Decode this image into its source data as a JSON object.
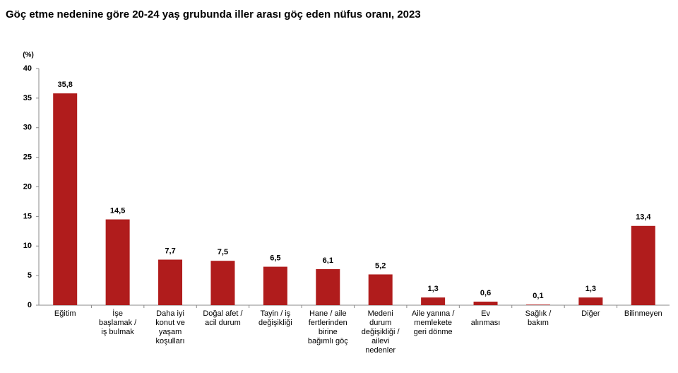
{
  "chart_data": {
    "type": "bar",
    "title": "Göç etme nedenine göre 20-24 yaş grubunda iller arası göç eden nüfus oranı, 2023",
    "y_label": "(%)",
    "categories": [
      "Eğitim",
      "İşe\nbaşlamak /\niş bulmak",
      "Daha iyi\nkonut ve\nyaşam\nkoşulları",
      "Doğal afet /\nacil durum",
      "Tayin / iş\ndeğişikliği",
      "Hane / aile\nfertlerinden\nbirine\nbağımlı göç",
      "Medeni\ndurum\ndeğişikliği /\nailevi\nnedenler",
      "Aile yanına /\nmemlekete\ngeri dönme",
      "Ev\nalınması",
      "Sağlık /\nbakım",
      "Diğer",
      "Bilinmeyen"
    ],
    "values": [
      35.8,
      14.5,
      7.7,
      7.5,
      6.5,
      6.1,
      5.2,
      1.3,
      0.6,
      0.1,
      1.3,
      13.4
    ],
    "value_labels": [
      "35,8",
      "14,5",
      "7,7",
      "7,5",
      "6,5",
      "6,1",
      "5,2",
      "1,3",
      "0,6",
      "0,1",
      "1,3",
      "13,4"
    ],
    "color": "#b01c1c",
    "ylim": [
      0,
      40
    ],
    "yticks": [
      0,
      5,
      10,
      15,
      20,
      25,
      30,
      35,
      40
    ],
    "grid": false
  }
}
